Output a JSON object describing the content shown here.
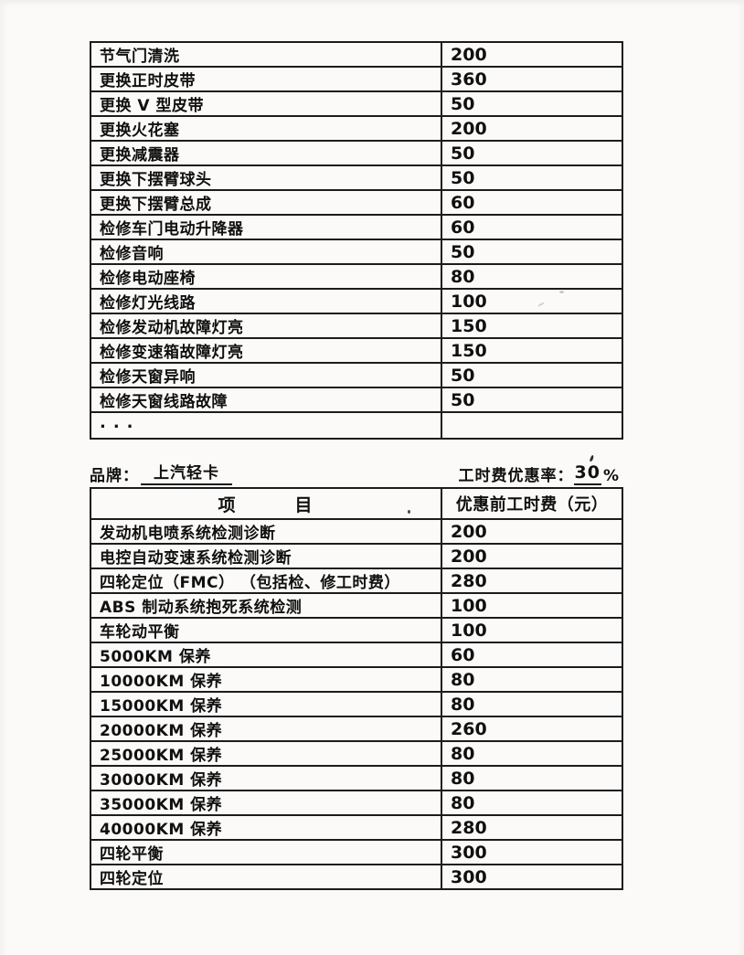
{
  "document": {
    "colors": {
      "paper": "#fbfaf8",
      "ink": "#101010",
      "line": "#1c1c1c"
    },
    "meta": {
      "brand_label": "品牌：",
      "brand_value": "上汽轻卡",
      "discount_label": "工时费优惠率：",
      "discount_value": "30",
      "discount_unit": "%"
    },
    "table_top": {
      "rows": [
        {
          "item": "节气门清洗",
          "price": "200"
        },
        {
          "item": "更换正时皮带",
          "price": "360"
        },
        {
          "item": "更换 V 型皮带",
          "price": "50"
        },
        {
          "item": "更换火花塞",
          "price": "200"
        },
        {
          "item": "更换减震器",
          "price": "50"
        },
        {
          "item": "更换下摆臂球头",
          "price": "50"
        },
        {
          "item": "更换下摆臂总成",
          "price": "60"
        },
        {
          "item": "检修车门电动升降器",
          "price": "60"
        },
        {
          "item": "检修音响",
          "price": "50"
        },
        {
          "item": "检修电动座椅",
          "price": "80"
        },
        {
          "item": "检修灯光线路",
          "price": "100"
        },
        {
          "item": "检修发动机故障灯亮",
          "price": "150"
        },
        {
          "item": "检修变速箱故障灯亮",
          "price": "150"
        },
        {
          "item": "检修天窗异响",
          "price": "50"
        },
        {
          "item": "检修天窗线路故障",
          "price": "50"
        },
        {
          "item": "...",
          "price": ""
        }
      ]
    },
    "table_bottom": {
      "header": {
        "item": "项　　　目",
        "price": "优惠前工时费（元）"
      },
      "rows": [
        {
          "item": "发动机电喷系统检测诊断",
          "price": "200"
        },
        {
          "item": "电控自动变速系统检测诊断",
          "price": "200"
        },
        {
          "item": "四轮定位（FMC） （包括检、修工时费）",
          "price": "280"
        },
        {
          "item": "ABS 制动系统抱死系统检测",
          "price": "100"
        },
        {
          "item": "车轮动平衡",
          "price": "100"
        },
        {
          "item": "5000KM 保养",
          "price": "60"
        },
        {
          "item": "10000KM 保养",
          "price": "80"
        },
        {
          "item": "15000KM 保养",
          "price": "80"
        },
        {
          "item": "20000KM 保养",
          "price": "260"
        },
        {
          "item": "25000KM 保养",
          "price": "80"
        },
        {
          "item": "30000KM 保养",
          "price": "80"
        },
        {
          "item": "35000KM 保养",
          "price": "80"
        },
        {
          "item": "40000KM 保养",
          "price": "280"
        },
        {
          "item": "四轮平衡",
          "price": "300"
        },
        {
          "item": "四轮定位",
          "price": "300"
        }
      ]
    }
  }
}
